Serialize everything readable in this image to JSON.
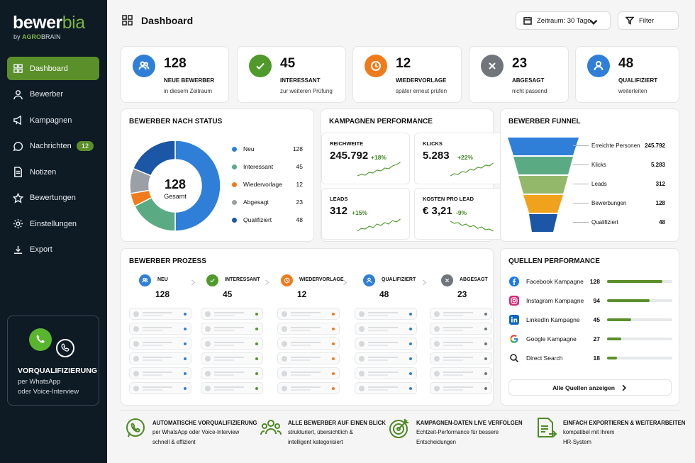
{
  "brand": {
    "name_a": "bewer",
    "name_b": "bia",
    "sub_prefix": "by ",
    "sub_agro": "AGRO",
    "sub_brain": "BRAIN"
  },
  "sidebar": {
    "items": [
      {
        "label": "Dashboard",
        "icon": "grid-icon"
      },
      {
        "label": "Bewerber",
        "icon": "user-icon"
      },
      {
        "label": "Kampagnen",
        "icon": "megaphone-icon"
      },
      {
        "label": "Nachrichten",
        "icon": "chat-icon",
        "badge": "12"
      },
      {
        "label": "Notizen",
        "icon": "note-icon"
      },
      {
        "label": "Bewertungen",
        "icon": "star-icon"
      },
      {
        "label": "Einstellungen",
        "icon": "gear-icon"
      },
      {
        "label": "Export",
        "icon": "download-icon"
      }
    ],
    "promo": {
      "title": "VORQUALIFIZIERUNG",
      "line1": "per WhatsApp",
      "line2": "oder Voice-Interview"
    }
  },
  "header": {
    "title": "Dashboard",
    "range": "Zeitraum: 30 Tage",
    "filter": "Filter"
  },
  "kpis": [
    {
      "value": "128",
      "label": "NEUE BEWERBER",
      "sub": "in diesem Zeitraum",
      "color": "#2f7fd8",
      "icon": "users-icon"
    },
    {
      "value": "45",
      "label": "INTERESSANT",
      "sub": "zur weiteren Prüfung",
      "color": "#4f9a2a",
      "icon": "check-icon"
    },
    {
      "value": "12",
      "label": "WIEDERVORLAGE",
      "sub": "später erneut prüfen",
      "color": "#f07b1d",
      "icon": "clock-icon"
    },
    {
      "value": "23",
      "label": "ABGESAGT",
      "sub": "nicht passend",
      "color": "#6f757b",
      "icon": "close-icon"
    },
    {
      "value": "48",
      "label": "QUALIFIZIERT",
      "sub": "weiterleiten",
      "color": "#2f7fd8",
      "icon": "user-icon"
    }
  ],
  "status": {
    "title": "BEWERBER NACH STATUS",
    "total": "128",
    "total_label": "Gesamt",
    "items": [
      {
        "label": "Neu",
        "value": 128,
        "color": "#2f7fd8"
      },
      {
        "label": "Interessant",
        "value": 45,
        "color": "#5aab83"
      },
      {
        "label": "Wiedervorlage",
        "value": 12,
        "color": "#f07b1d"
      },
      {
        "label": "Abgesagt",
        "value": 23,
        "color": "#9aa0a6"
      },
      {
        "label": "Qualifiziert",
        "value": 48,
        "color": "#1c56a6"
      }
    ]
  },
  "campaigns": {
    "title": "KAMPAGNEN PERFORMANCE",
    "tiles": [
      {
        "label": "REICHWEITE",
        "value": "245.792",
        "delta": "+18%",
        "color": "#3d8a1f"
      },
      {
        "label": "KLICKS",
        "value": "5.283",
        "delta": "+22%",
        "color": "#3d8a1f"
      },
      {
        "label": "LEADS",
        "value": "312",
        "delta": "+15%",
        "color": "#3d8a1f"
      },
      {
        "label": "KOSTEN PRO LEAD",
        "value": "€ 3,21",
        "delta": "-9%",
        "color": "#3d8a1f"
      }
    ]
  },
  "funnel": {
    "title": "BEWERBER FUNNEL",
    "stages": [
      {
        "label": "Erreichte Personen",
        "value": "245.792",
        "color": "#2f7fd8"
      },
      {
        "label": "Klicks",
        "value": "5.283",
        "color": "#5aab83"
      },
      {
        "label": "Leads",
        "value": "312",
        "color": "#93b86a"
      },
      {
        "label": "Bewerbungen",
        "value": "128",
        "color": "#f0a21d"
      },
      {
        "label": "Qualifiziert",
        "value": "48",
        "color": "#1c56a6"
      }
    ]
  },
  "process": {
    "title": "BEWERBER PROZESS",
    "stages": [
      {
        "label": "NEU",
        "count": "128",
        "color": "#2f7fd8",
        "icon": "users-icon"
      },
      {
        "label": "INTERESSANT",
        "count": "45",
        "color": "#4f9a2a",
        "icon": "check-icon"
      },
      {
        "label": "WIEDERVORLAGE",
        "count": "12",
        "color": "#f07b1d",
        "icon": "clock-icon"
      },
      {
        "label": "QUALIFIZIERT",
        "count": "48",
        "color": "#2f7fd8",
        "icon": "user-icon"
      },
      {
        "label": "ABGESAGT",
        "count": "23",
        "color": "#6f757b",
        "icon": "close-icon"
      }
    ]
  },
  "sources": {
    "title": "QUELLEN PERFORMANCE",
    "items": [
      {
        "label": "Facebook Kampagne",
        "value": "128",
        "share": 0.85,
        "icon": "facebook-icon",
        "color": "#1877f2"
      },
      {
        "label": "Instagram Kampagne",
        "value": "94",
        "share": 0.65,
        "icon": "instagram-icon",
        "color": "#d62976"
      },
      {
        "label": "LinkedIn Kampagne",
        "value": "45",
        "share": 0.37,
        "icon": "linkedin-icon",
        "color": "#0a66c2"
      },
      {
        "label": "Google Kampagne",
        "value": "27",
        "share": 0.22,
        "icon": "google-icon",
        "color": "#ea4335"
      },
      {
        "label": "Direct Search",
        "value": "18",
        "share": 0.15,
        "icon": "search-icon",
        "color": "#222222"
      }
    ],
    "button": "Alle Quellen anzeigen"
  },
  "features": [
    {
      "title": "AUTOMATISCHE VORQUALIFIZIERUNG",
      "line1": "per WhatsApp oder Voice-Interview",
      "line2": "schnell & effizient",
      "icon": "whatsapp-icon"
    },
    {
      "title": "ALLE BEWERBER AUF EINEN BLICK",
      "line1": "strukturiert, übersichtlich &",
      "line2": "intelligent kategorisiert",
      "icon": "team-icon"
    },
    {
      "title": "KAMPAGNEN-DATEN LIVE VERFOLGEN",
      "line1": "Echtzeit-Performance für bessere",
      "line2": "Entscheidungen",
      "icon": "target-icon"
    },
    {
      "title": "EINFACH EXPORTIEREN & WEITERARBEITEN",
      "line1": "kompatibel mit Ihrem",
      "line2": "HR-System",
      "icon": "export-doc-icon"
    }
  ]
}
